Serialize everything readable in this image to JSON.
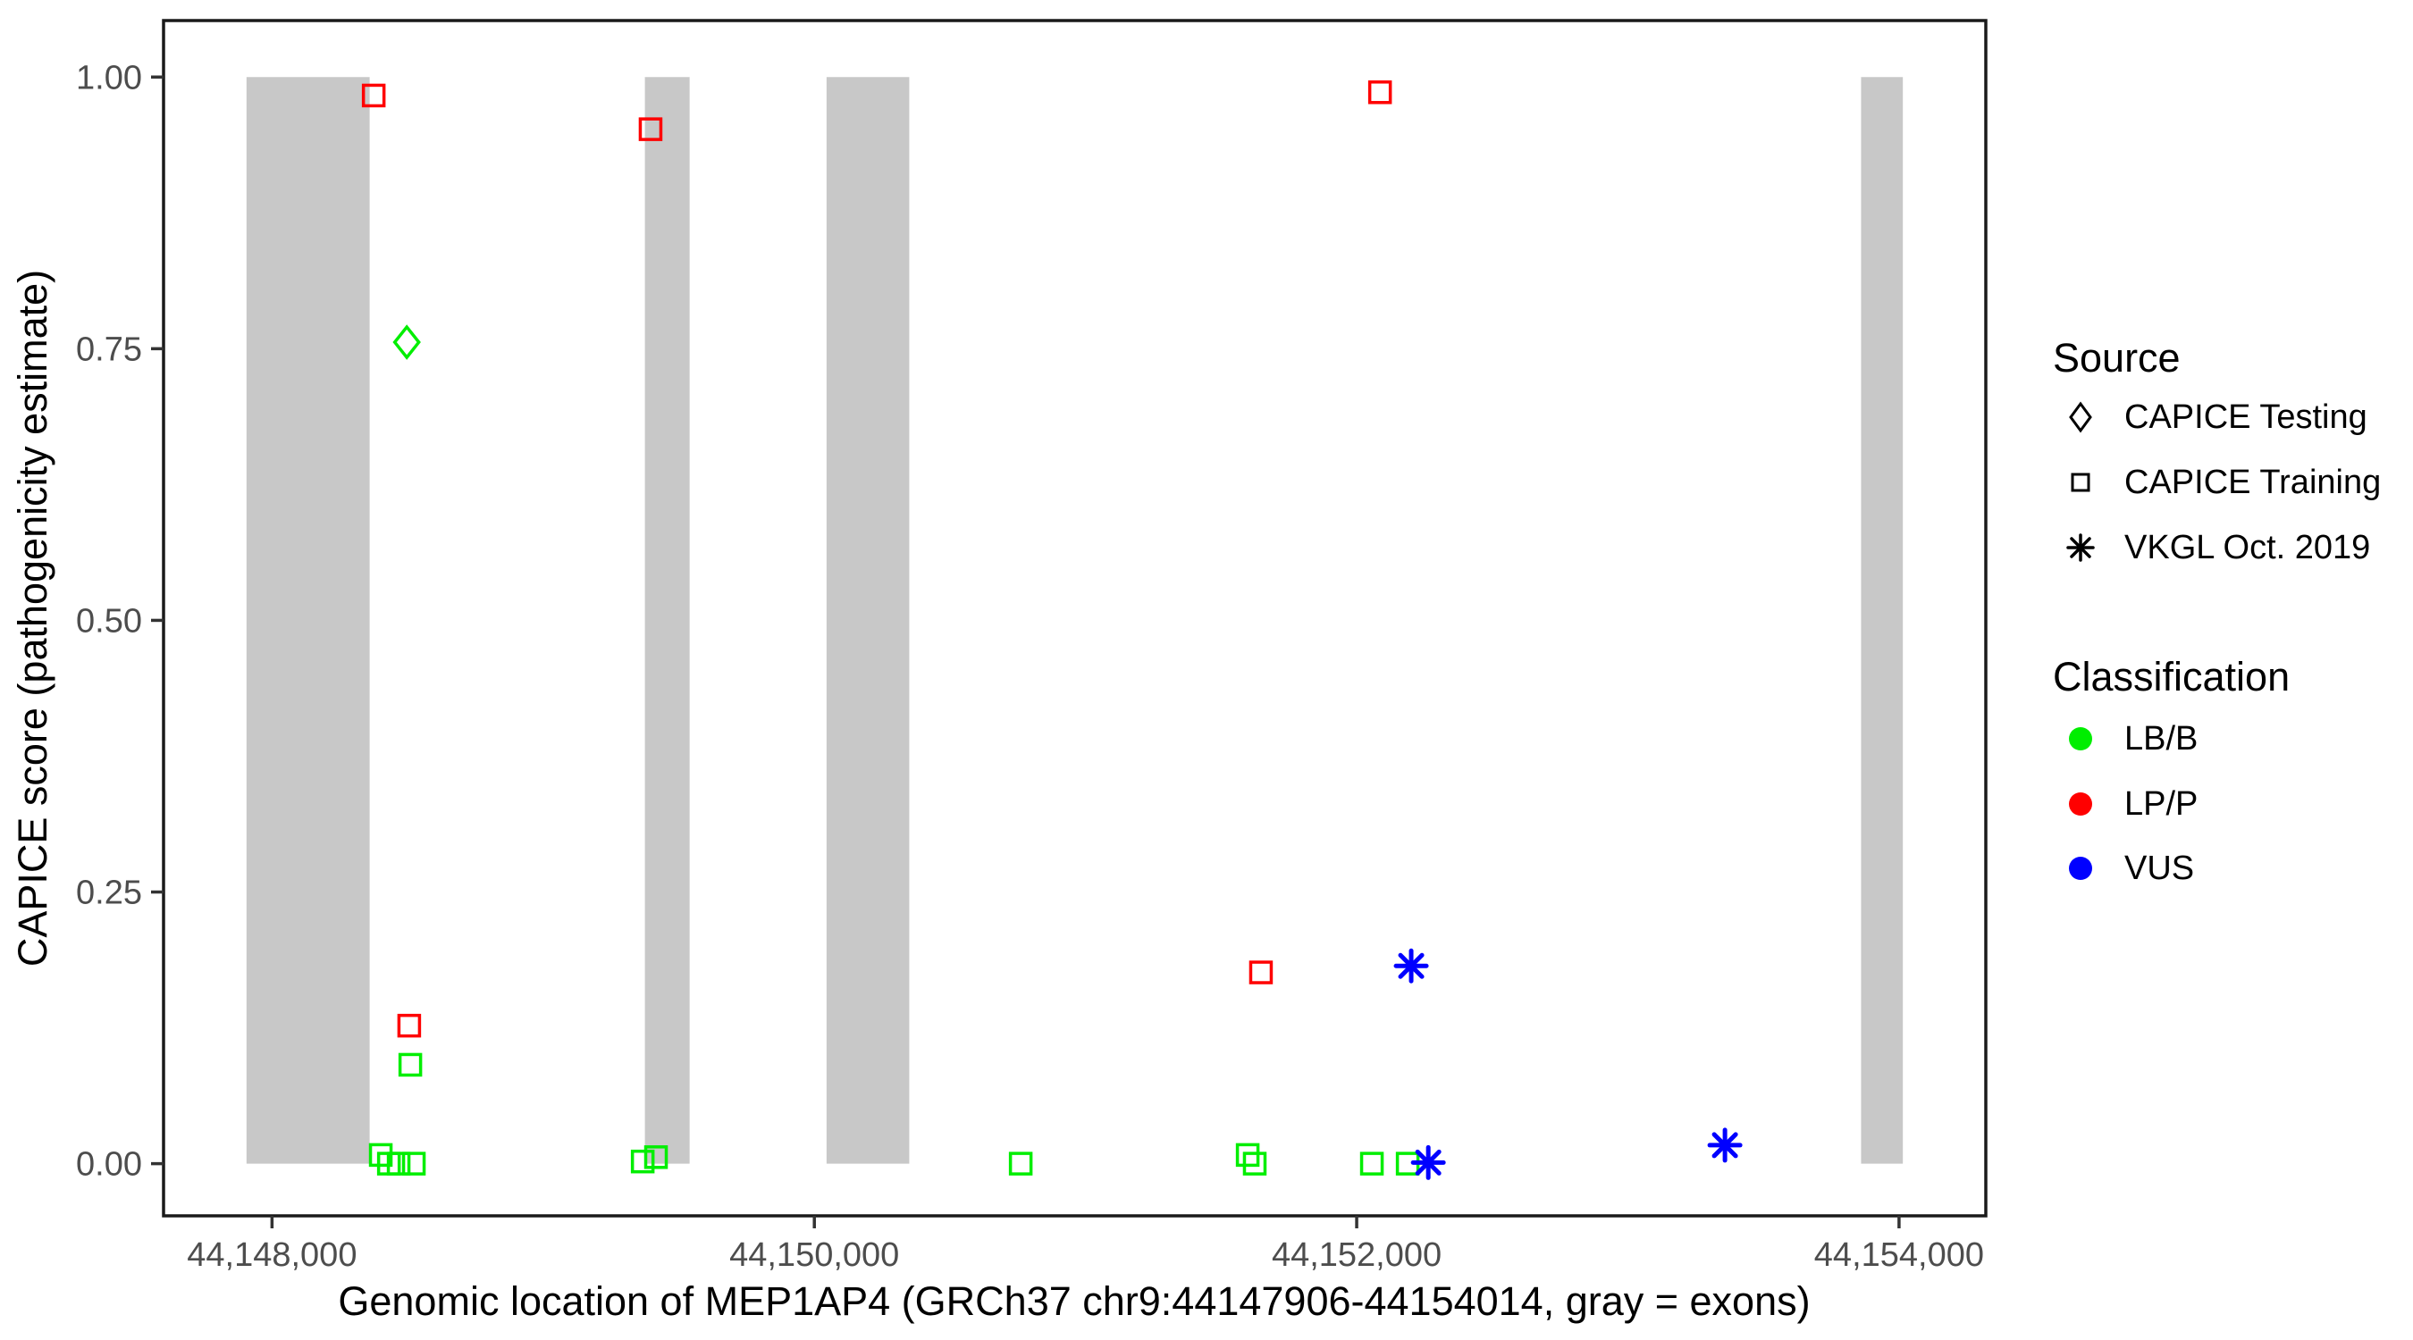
{
  "chart_data": {
    "type": "scatter",
    "title": "",
    "xlabel": "Genomic location of MEP1AP4 (GRCh37 chr9:44147906-44154014, gray = exons)",
    "ylabel": "CAPICE score (pathogenicity estimate)",
    "xlim": [
      44147600,
      44154320
    ],
    "ylim": [
      -0.048,
      1.052
    ],
    "grid": false,
    "x_ticks": [
      {
        "value": 44148000,
        "label": "44,148,000"
      },
      {
        "value": 44150000,
        "label": "44,150,000"
      },
      {
        "value": 44152000,
        "label": "44,152,000"
      },
      {
        "value": 44154000,
        "label": "44,154,000"
      }
    ],
    "y_ticks": [
      {
        "value": 0.0,
        "label": "0.00"
      },
      {
        "value": 0.25,
        "label": "0.25"
      },
      {
        "value": 0.5,
        "label": "0.50"
      },
      {
        "value": 0.75,
        "label": "0.75"
      },
      {
        "value": 1.0,
        "label": "1.00"
      }
    ],
    "exon_bars_note": "gray vertical bars mark exons, spanning score 0 to 1",
    "exon_color": "#C8C8C8",
    "exons": [
      {
        "start": 44147906,
        "end": 44148360
      },
      {
        "start": 44149375,
        "end": 44149540
      },
      {
        "start": 44150045,
        "end": 44150350
      },
      {
        "start": 44153860,
        "end": 44154014
      }
    ],
    "classification_colors": {
      "LB/B": "#00EE00",
      "LP/P": "#FF0000",
      "VUS": "#0000FF"
    },
    "series": [
      {
        "name": "CAPICE Testing",
        "marker": "diamond",
        "points": [
          {
            "x": 44148497,
            "y": 0.756,
            "classification": "LB/B"
          }
        ]
      },
      {
        "name": "CAPICE Training",
        "marker": "square",
        "points": [
          {
            "x": 44148375,
            "y": 0.983,
            "classification": "LP/P"
          },
          {
            "x": 44148506,
            "y": 0.127,
            "classification": "LP/P"
          },
          {
            "x": 44148510,
            "y": 0.091,
            "classification": "LB/B"
          },
          {
            "x": 44148401,
            "y": 0.008,
            "classification": "LB/B"
          },
          {
            "x": 44148431,
            "y": 0.0,
            "classification": "LB/B"
          },
          {
            "x": 44148467,
            "y": 0.0,
            "classification": "LB/B"
          },
          {
            "x": 44148523,
            "y": 0.0,
            "classification": "LB/B"
          },
          {
            "x": 44149396,
            "y": 0.952,
            "classification": "LP/P"
          },
          {
            "x": 44149367,
            "y": 0.002,
            "classification": "LB/B"
          },
          {
            "x": 44149416,
            "y": 0.006,
            "classification": "LB/B"
          },
          {
            "x": 44150761,
            "y": 0.0,
            "classification": "LB/B"
          },
          {
            "x": 44151598,
            "y": 0.008,
            "classification": "LB/B"
          },
          {
            "x": 44151624,
            "y": 0.0,
            "classification": "LB/B"
          },
          {
            "x": 44151647,
            "y": 0.176,
            "classification": "LP/P"
          },
          {
            "x": 44152086,
            "y": 0.986,
            "classification": "LP/P"
          },
          {
            "x": 44152056,
            "y": 0.0,
            "classification": "LB/B"
          },
          {
            "x": 44152188,
            "y": 0.0,
            "classification": "LB/B"
          }
        ]
      },
      {
        "name": "VKGL Oct. 2019",
        "marker": "asterisk",
        "points": [
          {
            "x": 44152201,
            "y": 0.182,
            "classification": "VUS"
          },
          {
            "x": 44152264,
            "y": 0.001,
            "classification": "VUS"
          },
          {
            "x": 44153358,
            "y": 0.017,
            "classification": "VUS"
          }
        ]
      }
    ],
    "legend_position": "right"
  },
  "legend": {
    "source": {
      "title": "Source",
      "items": [
        {
          "label": "CAPICE Testing",
          "marker": "diamond"
        },
        {
          "label": "CAPICE Training",
          "marker": "square"
        },
        {
          "label": "VKGL Oct. 2019",
          "marker": "asterisk"
        }
      ]
    },
    "classification": {
      "title": "Classification",
      "items": [
        {
          "label": "LB/B",
          "color": "#00EE00"
        },
        {
          "label": "LP/P",
          "color": "#FF0000"
        },
        {
          "label": "VUS",
          "color": "#0000FF"
        }
      ]
    }
  },
  "colors": {
    "panel_border": "#1a1a1a",
    "tick_text": "#4d4d4d",
    "axis_title_text": "#000000",
    "background": "#ffffff"
  }
}
